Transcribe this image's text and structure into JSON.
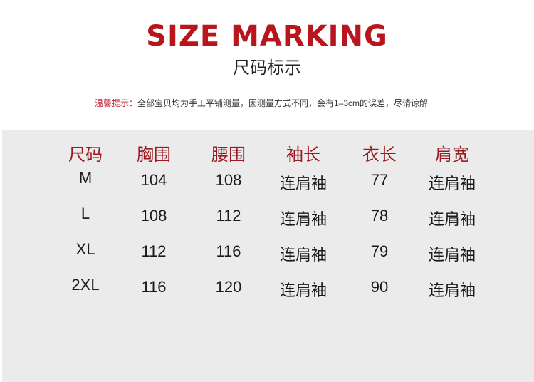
{
  "title": "SIZE MARKING",
  "subtitle": "尺码标示",
  "notice": {
    "label": "温馨提示：",
    "text": "全部宝贝均为手工平铺测量，因测量方式不同，会有1–3cm的误差，尽请谅解"
  },
  "table": {
    "headers": [
      "尺码",
      "胸围",
      "腰围",
      "袖长",
      "衣长",
      "肩宽"
    ],
    "rows": [
      [
        "M",
        "104",
        "108",
        "连肩袖",
        "77",
        "连肩袖"
      ],
      [
        "L",
        "108",
        "112",
        "连肩袖",
        "78",
        "连肩袖"
      ],
      [
        "XL",
        "112",
        "116",
        "连肩袖",
        "79",
        "连肩袖"
      ],
      [
        "2XL",
        "116",
        "120",
        "连肩袖",
        "90",
        "连肩袖"
      ]
    ]
  },
  "colors": {
    "title": "#b8151d",
    "header": "#9a1a1f",
    "panel": "#ebebeb"
  }
}
